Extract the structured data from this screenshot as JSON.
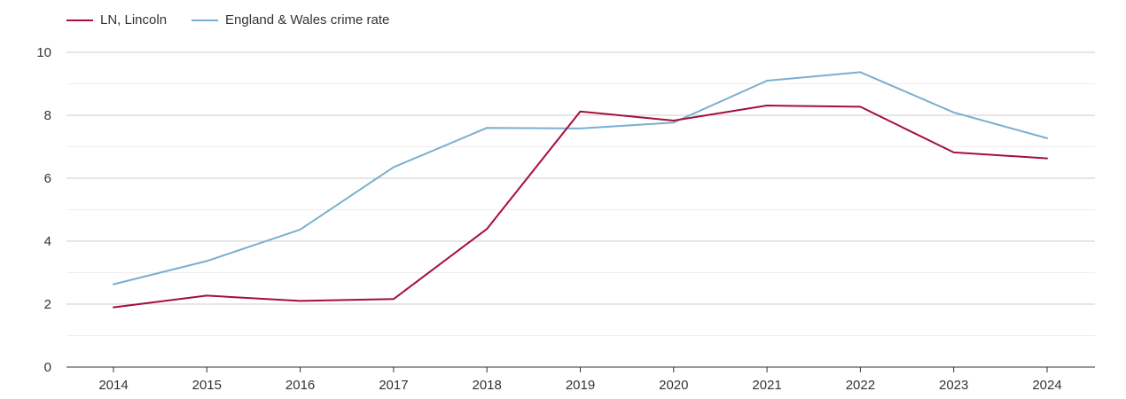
{
  "chart_data": {
    "type": "line",
    "title": "",
    "xlabel": "",
    "ylabel": "",
    "x": [
      "2014",
      "2015",
      "2016",
      "2017",
      "2018",
      "2019",
      "2020",
      "2021",
      "2022",
      "2023",
      "2024"
    ],
    "ylim": [
      0,
      10
    ],
    "yticks": [
      0,
      2,
      4,
      6,
      8,
      10
    ],
    "grid": true,
    "legend_position": "top-left",
    "series": [
      {
        "name": "LN, Lincoln",
        "color": "#a50f3a",
        "values": [
          1.9,
          2.27,
          2.1,
          2.16,
          4.39,
          8.12,
          7.83,
          8.31,
          8.27,
          6.82,
          6.63
        ]
      },
      {
        "name": "England & Wales crime rate",
        "color": "#7aafcf",
        "values": [
          2.63,
          3.37,
          4.37,
          6.35,
          7.6,
          7.58,
          7.77,
          9.1,
          9.37,
          8.09,
          7.27
        ]
      }
    ]
  }
}
